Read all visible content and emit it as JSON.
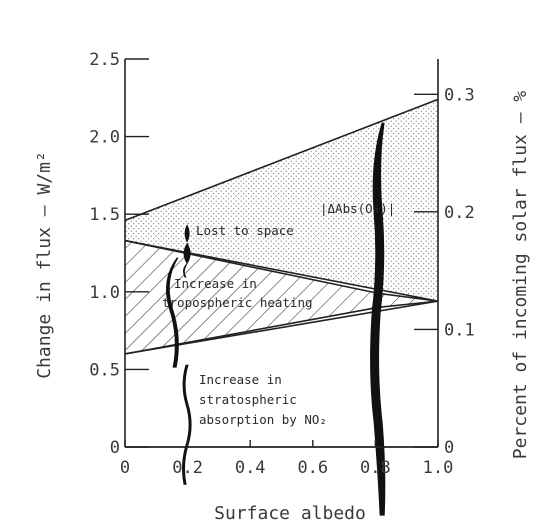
{
  "chart_data": {
    "type": "area",
    "xlabel": "Surface albedo",
    "ylabel_left": "Change in flux – W/m²",
    "ylabel_right": "Percent of incoming solar flux – %",
    "x_ticks": [
      "0",
      "0.2",
      "0.4",
      "0.6",
      "0.8",
      "1.0"
    ],
    "y_left_ticks": [
      "0",
      "0.5",
      "1.0",
      "1.5",
      "2.0",
      "2.5"
    ],
    "y_right_ticks": [
      "0",
      "0.1",
      "0.2",
      "0.3"
    ],
    "xlim": [
      0,
      1.0
    ],
    "ylim_left": [
      0,
      2.5
    ],
    "ylim_right": [
      0,
      0.33
    ],
    "grid": false,
    "series": [
      {
        "name": "Lost to space",
        "x": [
          0,
          1.0
        ],
        "lower": [
          1.33,
          0.94
        ],
        "upper": [
          1.46,
          2.24
        ]
      },
      {
        "name": "Increase in tropospheric heating",
        "x": [
          0,
          0.81,
          1.0
        ],
        "lower": [
          0.6,
          0.9,
          0.94
        ],
        "upper": [
          1.33,
          0.99,
          0.94
        ]
      },
      {
        "name": "Increase in stratospheric absorption by NO2",
        "x": [
          0,
          1.0
        ],
        "lower": [
          0,
          0
        ],
        "upper": [
          0.6,
          0.94
        ]
      }
    ],
    "annotations": {
      "lost": "Lost to space",
      "dabs": "|ΔAbs(O₃)|",
      "trop1": "Increase in",
      "trop2": "tropospheric heating",
      "strat1": "Increase in",
      "strat2": "stratospheric",
      "strat3": "absorption by NO₂"
    },
    "markers": [
      {
        "label": "break",
        "x": 0.2
      },
      {
        "label": "break",
        "x": 0.82
      }
    ]
  }
}
